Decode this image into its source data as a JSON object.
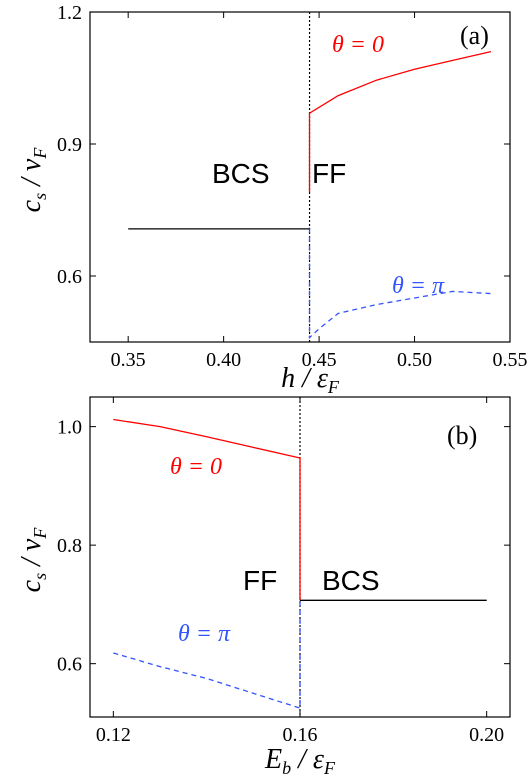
{
  "chart_data": [
    {
      "type": "line",
      "panel_label": "(a)",
      "xlabel": "h / ε_F",
      "ylabel": "c_s / v_F",
      "xlim": [
        0.33,
        0.55
      ],
      "ylim": [
        0.45,
        1.2
      ],
      "xticks": [
        0.35,
        0.4,
        0.45,
        0.5,
        0.55
      ],
      "xtick_labels": [
        "0.35",
        "0.40",
        "0.45",
        "0.50",
        "0.55"
      ],
      "yticks": [
        0.6,
        0.9,
        1.2
      ],
      "ytick_labels": [
        "0.6",
        "0.9",
        "1.2"
      ],
      "region_labels": [
        "BCS",
        "FF"
      ],
      "vline_x": 0.445,
      "series": [
        {
          "name": "θ = 0",
          "color": "#ff0000",
          "style": "solid",
          "x": [
            0.445,
            0.445,
            0.46,
            0.48,
            0.5,
            0.52,
            0.54
          ],
          "y": [
            0.79,
            0.97,
            1.01,
            1.045,
            1.07,
            1.09,
            1.11
          ]
        },
        {
          "name": "θ = π",
          "color": "#3355ff",
          "style": "dashed",
          "x": [
            0.445,
            0.445,
            0.45,
            0.46,
            0.48,
            0.5,
            0.52,
            0.54
          ],
          "y": [
            0.71,
            0.46,
            0.48,
            0.515,
            0.535,
            0.55,
            0.565,
            0.56
          ]
        },
        {
          "name": "BCS",
          "color": "#000000",
          "style": "solid",
          "x": [
            0.35,
            0.445
          ],
          "y": [
            0.707,
            0.707
          ]
        }
      ]
    },
    {
      "type": "line",
      "panel_label": "(b)",
      "xlabel": "E_b / ε_F",
      "ylabel": "c_s / v_F",
      "xlim": [
        0.115,
        0.205
      ],
      "ylim": [
        0.51,
        1.05
      ],
      "xticks": [
        0.12,
        0.16,
        0.2
      ],
      "xtick_labels": [
        "0.12",
        "0.16",
        "0.20"
      ],
      "yticks": [
        0.6,
        0.8,
        1.0
      ],
      "ytick_labels": [
        "0.6",
        "0.8",
        "1.0"
      ],
      "region_labels": [
        "FF",
        "BCS"
      ],
      "vline_x": 0.16,
      "series": [
        {
          "name": "θ = 0",
          "color": "#ff0000",
          "style": "solid",
          "x": [
            0.12,
            0.13,
            0.14,
            0.15,
            0.16,
            0.16
          ],
          "y": [
            1.012,
            1.0,
            0.983,
            0.965,
            0.947,
            0.707
          ]
        },
        {
          "name": "θ = π",
          "color": "#3355ff",
          "style": "dashed",
          "x": [
            0.12,
            0.13,
            0.14,
            0.15,
            0.16,
            0.16
          ],
          "y": [
            0.618,
            0.595,
            0.575,
            0.55,
            0.525,
            0.707
          ]
        },
        {
          "name": "BCS",
          "color": "#000000",
          "style": "solid",
          "x": [
            0.16,
            0.2
          ],
          "y": [
            0.707,
            0.707
          ]
        }
      ]
    }
  ]
}
